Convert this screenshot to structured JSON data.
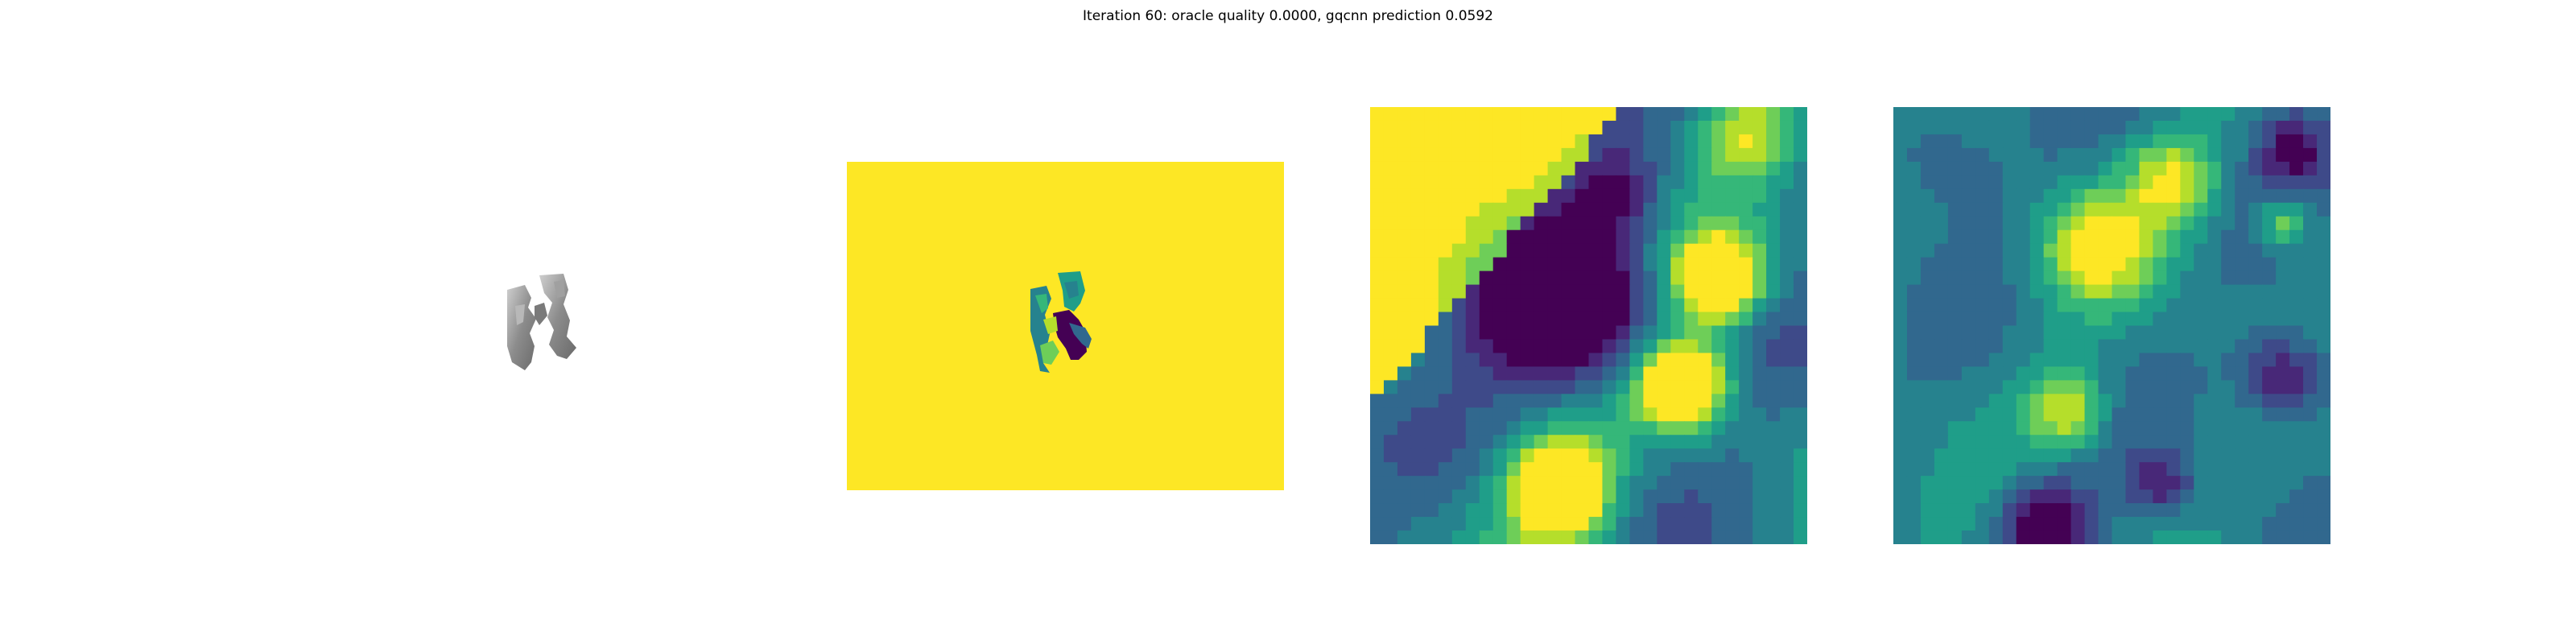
{
  "figure": {
    "title": "Iteration 60: oracle quality 0.0000, gqcnn prediction 0.0592"
  },
  "panels": [
    {
      "id": "rendered-object",
      "kind": "grayscale render"
    },
    {
      "id": "depth-image",
      "kind": "viridis depth map",
      "background_color": "#fde725"
    },
    {
      "id": "depth-crop-1",
      "kind": "viridis heatmap"
    },
    {
      "id": "depth-crop-2",
      "kind": "viridis heatmap"
    }
  ],
  "colormap": [
    "#440154",
    "#482878",
    "#3e4a89",
    "#31688e",
    "#26828e",
    "#1f9e89",
    "#35b779",
    "#6ece58",
    "#b5de2b",
    "#fde725"
  ]
}
